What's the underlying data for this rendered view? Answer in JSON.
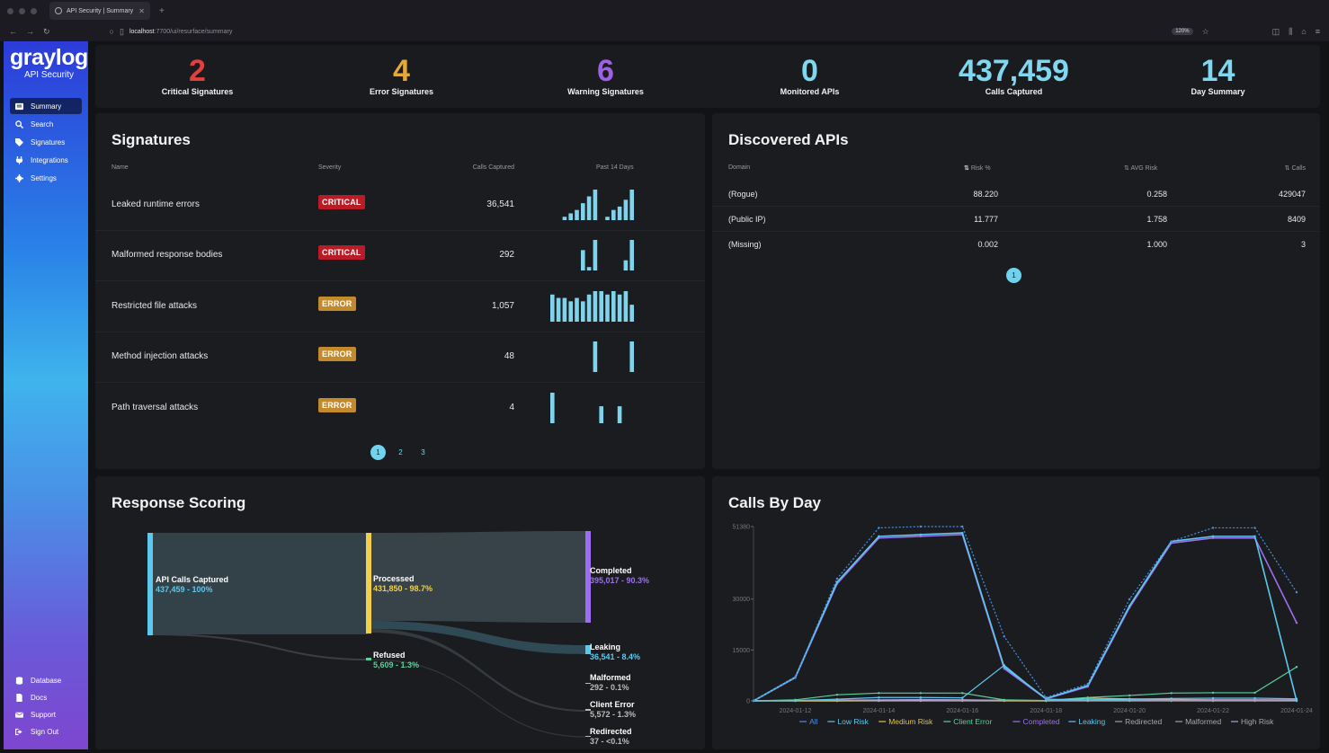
{
  "browser": {
    "tab_title": "API Security | Summary",
    "url_host": "localhost",
    "url_path": ":7700/ui/resurface/summary",
    "zoom": "120%"
  },
  "sidebar": {
    "logo": "graylog",
    "subtitle": "API Security",
    "items": [
      {
        "label": "Summary",
        "icon": "summary-icon"
      },
      {
        "label": "Search",
        "icon": "search-icon"
      },
      {
        "label": "Signatures",
        "icon": "tag-icon"
      },
      {
        "label": "Integrations",
        "icon": "plug-icon"
      },
      {
        "label": "Settings",
        "icon": "gear-icon"
      }
    ],
    "bottom_items": [
      {
        "label": "Database",
        "icon": "database-icon"
      },
      {
        "label": "Docs",
        "icon": "document-icon"
      },
      {
        "label": "Support",
        "icon": "mail-icon"
      },
      {
        "label": "Sign Out",
        "icon": "sign-out-icon"
      }
    ]
  },
  "stats": [
    {
      "value": "2",
      "label": "Critical Signatures",
      "color": "#e0413e"
    },
    {
      "value": "4",
      "label": "Error Signatures",
      "color": "#e2a93a"
    },
    {
      "value": "6",
      "label": "Warning Signatures",
      "color": "#9f5fe6"
    },
    {
      "value": "0",
      "label": "Monitored APIs",
      "color": "#7fd8f0"
    },
    {
      "value": "437,459",
      "label": "Calls Captured",
      "color": "#7fd8f0"
    },
    {
      "value": "14",
      "label": "Day Summary",
      "color": "#7fd8f0"
    }
  ],
  "signatures": {
    "title": "Signatures",
    "headers": {
      "name": "Name",
      "severity": "Severity",
      "calls": "Calls Captured",
      "past": "Past 14 Days"
    },
    "rows": [
      {
        "name": "Leaked runtime errors",
        "severity": "CRITICAL",
        "calls": "36,541",
        "trend": [
          0,
          0,
          1,
          2,
          3,
          5,
          7,
          9,
          0,
          1,
          3,
          4,
          6,
          9
        ]
      },
      {
        "name": "Malformed response bodies",
        "severity": "CRITICAL",
        "calls": "292",
        "trend": [
          0,
          0,
          0,
          0,
          0,
          6,
          1,
          9,
          0,
          0,
          0,
          0,
          3,
          9
        ]
      },
      {
        "name": "Restricted file attacks",
        "severity": "ERROR",
        "calls": "1,057",
        "trend": [
          8,
          7,
          7,
          6,
          7,
          6,
          8,
          9,
          9,
          8,
          9,
          8,
          9,
          5
        ]
      },
      {
        "name": "Method injection attacks",
        "severity": "ERROR",
        "calls": "48",
        "trend": [
          0,
          0,
          0,
          0,
          0,
          0,
          0,
          9,
          0,
          0,
          0,
          0,
          0,
          9
        ]
      },
      {
        "name": "Path traversal attacks",
        "severity": "ERROR",
        "calls": "4",
        "trend": [
          9,
          0,
          0,
          0,
          0,
          0,
          0,
          0,
          5,
          0,
          0,
          5,
          0,
          0
        ]
      }
    ],
    "pages": [
      "1",
      "2",
      "3"
    ]
  },
  "discovered_apis": {
    "title": "Discovered APIs",
    "headers": {
      "domain": "Domain",
      "risk": "Risk %",
      "avg_risk": "AVG Risk",
      "calls": "Calls"
    },
    "rows": [
      {
        "domain": "(Rogue)",
        "risk": "88.220",
        "avg_risk": "0.258",
        "calls": "429047"
      },
      {
        "domain": "(Public IP)",
        "risk": "11.777",
        "avg_risk": "1.758",
        "calls": "8409"
      },
      {
        "domain": "(Missing)",
        "risk": "0.002",
        "avg_risk": "1.000",
        "calls": "3"
      }
    ],
    "pages": [
      "1"
    ]
  },
  "response_scoring": {
    "title": "Response Scoring",
    "nodes": [
      {
        "label": "API Calls Captured",
        "value": "437,459 - 100%",
        "color": "#5cc8ee"
      },
      {
        "label": "Processed",
        "value": "431,850 - 98.7%",
        "color": "#f2d04a"
      },
      {
        "label": "Refused",
        "value": "5,609 - 1.3%",
        "color": "#56d39a"
      },
      {
        "label": "Completed",
        "value": "395,017 - 90.3%",
        "color": "#9d6ff0"
      },
      {
        "label": "Leaking",
        "value": "36,541 - 8.4%",
        "color": "#5cc8ee"
      },
      {
        "label": "Malformed",
        "value": "292 - 0.1%",
        "color": "#bbbbbb"
      },
      {
        "label": "Client Error",
        "value": "5,572 - 1.3%",
        "color": "#bbbbbb"
      },
      {
        "label": "Redirected",
        "value": "37 - <0.1%",
        "color": "#bbbbbb"
      }
    ]
  },
  "chart_data": {
    "type": "line",
    "title": "Calls By Day",
    "x": [
      "2024-01-11",
      "2024-01-12",
      "2024-01-13",
      "2024-01-14",
      "2024-01-15",
      "2024-01-16",
      "2024-01-17",
      "2024-01-18",
      "2024-01-19",
      "2024-01-20",
      "2024-01-21",
      "2024-01-22",
      "2024-01-23",
      "2024-01-24"
    ],
    "xticks": [
      "2024-01-12",
      "2024-01-14",
      "2024-01-16",
      "2024-01-18",
      "2024-01-20",
      "2024-01-22",
      "2024-01-24"
    ],
    "yticks": [
      "0",
      "15000",
      "30000",
      "51380"
    ],
    "ylim": [
      0,
      51380
    ],
    "series": [
      {
        "name": "All",
        "color": "#4a8fe6",
        "dashed": true,
        "values": [
          0,
          7000,
          36000,
          51000,
          51380,
          51380,
          19000,
          1000,
          5000,
          30000,
          47000,
          51000,
          51000,
          32000
        ]
      },
      {
        "name": "Low Risk",
        "color": "#5cc8ee",
        "dashed": false,
        "values": [
          0,
          7000,
          35000,
          48500,
          49000,
          49500,
          10000,
          700,
          4500,
          28000,
          47000,
          48500,
          48500,
          0
        ]
      },
      {
        "name": "Medium Risk",
        "color": "#e2c14a",
        "dashed": false,
        "values": [
          0,
          0,
          0,
          200,
          300,
          300,
          100,
          0,
          800,
          600,
          400,
          300,
          300,
          200
        ]
      },
      {
        "name": "Client Error",
        "color": "#56d39a",
        "dashed": false,
        "values": [
          0,
          300,
          1800,
          2300,
          2300,
          2300,
          300,
          100,
          1000,
          1600,
          2300,
          2400,
          2400,
          10000
        ]
      },
      {
        "name": "Completed",
        "color": "#9d6ff0",
        "dashed": false,
        "values": [
          0,
          6800,
          34500,
          48000,
          48500,
          49000,
          9500,
          600,
          4200,
          27500,
          46500,
          48000,
          48000,
          23000
        ]
      },
      {
        "name": "Leaking",
        "color": "#5cc8ee",
        "dashed": false,
        "values": [
          0,
          100,
          500,
          1000,
          1000,
          900,
          10500,
          500,
          300,
          500,
          700,
          800,
          800,
          600
        ]
      },
      {
        "name": "Redirected",
        "color": "#a0a0a0",
        "dashed": false,
        "values": [
          0,
          0,
          0,
          0,
          0,
          0,
          0,
          0,
          0,
          0,
          0,
          0,
          0,
          0
        ]
      },
      {
        "name": "Malformed",
        "color": "#a0a0a0",
        "dashed": false,
        "values": [
          0,
          0,
          0,
          0,
          0,
          0,
          0,
          0,
          0,
          0,
          0,
          0,
          0,
          0
        ]
      },
      {
        "name": "High Risk",
        "color": "#b09ad8",
        "dashed": false,
        "values": [
          0,
          100,
          200,
          300,
          400,
          300,
          200,
          100,
          300,
          300,
          300,
          300,
          300,
          300
        ]
      }
    ]
  }
}
